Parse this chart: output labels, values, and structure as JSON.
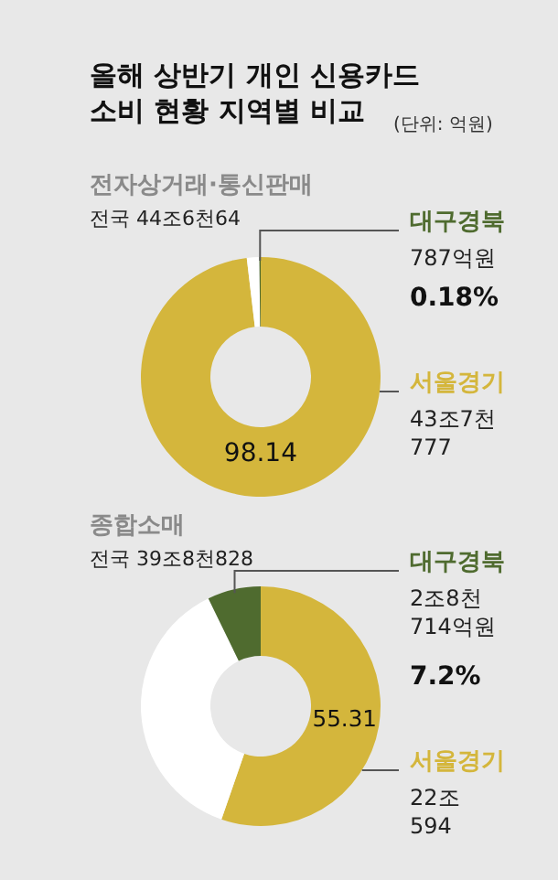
{
  "chart_data": [
    {
      "type": "other",
      "title": "올해 상반기 개인 신용카드\n소비 현황 지역별 비교",
      "subtitle": "(단위: 억원)"
    },
    {
      "type": "donut",
      "title": "전자상거래·통신판매",
      "subtitle": "전국 44조6천64",
      "categories": [
        "서울경기",
        null,
        "대구경북"
      ],
      "values": [
        98.14,
        1.68,
        0.18
      ],
      "colors": [
        "#d4b63c",
        "#ffffff",
        "#4f6b2f"
      ],
      "value_labels": [
        "98.14",
        null,
        null
      ],
      "annotations": [
        "787억원",
        "0.18%",
        "43조7천\n777"
      ]
    },
    {
      "type": "donut",
      "title": "종합소매",
      "subtitle": "전국 39조8천828",
      "categories": [
        "서울경기",
        null,
        "대구경북"
      ],
      "values": [
        55.31,
        37.49,
        7.2
      ],
      "colors": [
        "#d4b63c",
        "#ffffff",
        "#4f6b2f"
      ],
      "value_labels": [
        "55.31",
        null,
        null
      ],
      "annotations": [
        "2조8천\n714억원",
        "7.2%",
        "22조\n594"
      ]
    }
  ]
}
